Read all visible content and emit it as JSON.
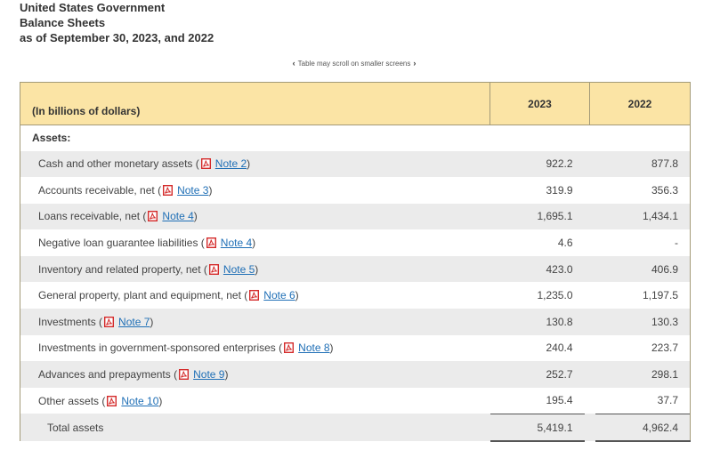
{
  "heading": {
    "line1": "United States Government",
    "line2": "Balance Sheets",
    "line3": "as of September 30, 2023, and 2022"
  },
  "scroll_hint": "Table may scroll on smaller screens",
  "table": {
    "header": {
      "label": "(In billions of dollars)",
      "col1": "2023",
      "col2": "2022"
    },
    "section_label": "Assets:",
    "rows": [
      {
        "label": "Cash and other monetary assets",
        "note": "Note 2",
        "v2023": "922.2",
        "v2022": "877.8"
      },
      {
        "label": "Accounts receivable, net",
        "note": "Note 3",
        "v2023": "319.9",
        "v2022": "356.3"
      },
      {
        "label": "Loans receivable, net",
        "note": "Note 4",
        "v2023": "1,695.1",
        "v2022": "1,434.1"
      },
      {
        "label": "Negative loan guarantee liabilities",
        "note": "Note 4",
        "v2023": "4.6",
        "v2022": "-"
      },
      {
        "label": "Inventory and related property, net",
        "note": "Note 5",
        "v2023": "423.0",
        "v2022": "406.9"
      },
      {
        "label": "General property, plant and equipment, net",
        "note": "Note 6",
        "v2023": "1,235.0",
        "v2022": "1,197.5"
      },
      {
        "label": "Investments",
        "note": "Note 7",
        "v2023": "130.8",
        "v2022": "130.3"
      },
      {
        "label": "Investments in government-sponsored enterprises",
        "note": "Note 8",
        "v2023": "240.4",
        "v2022": "223.7"
      },
      {
        "label": "Advances and prepayments",
        "note": "Note 9",
        "v2023": "252.7",
        "v2022": "298.1"
      },
      {
        "label": "Other assets",
        "note": "Note 10",
        "v2023": "195.4",
        "v2022": "37.7"
      }
    ],
    "total": {
      "label": "Total assets",
      "v2023": "5,419.1",
      "v2022": "4,962.4"
    }
  },
  "icons": {
    "pdf": "pdf-file-icon",
    "prev": "chevron-left-icon",
    "next": "chevron-right-icon"
  },
  "colors": {
    "header_bg": "#fbe4a5",
    "row_shade": "#ebebeb",
    "link": "#1f6fb6",
    "pdf_red": "#d42a2a"
  }
}
